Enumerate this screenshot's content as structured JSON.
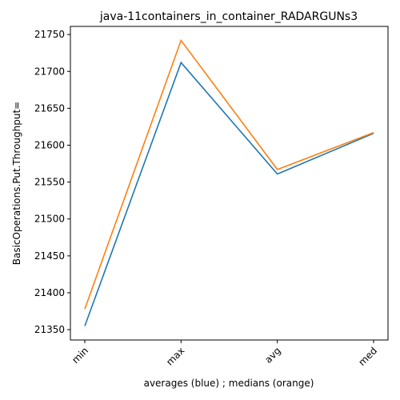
{
  "chart_data": {
    "type": "line",
    "title": "java-11containers_in_container_RADARGUNs3",
    "xlabel": "averages (blue) ; medians (orange)",
    "ylabel": "BasicOperations.Put.Throughput=",
    "categories": [
      "min",
      "max",
      "avg",
      "med"
    ],
    "series": [
      {
        "values": [
          21355,
          21712,
          21561,
          21616
        ],
        "color": "#1f77b4"
      },
      {
        "values": [
          21378,
          21742,
          21567,
          21617
        ],
        "color": "#ff7f0e"
      }
    ],
    "ylim": [
      21336,
      21761
    ],
    "yticks": [
      21350,
      21400,
      21450,
      21500,
      21550,
      21600,
      21650,
      21700,
      21750
    ],
    "grid": false,
    "legend": "none"
  }
}
